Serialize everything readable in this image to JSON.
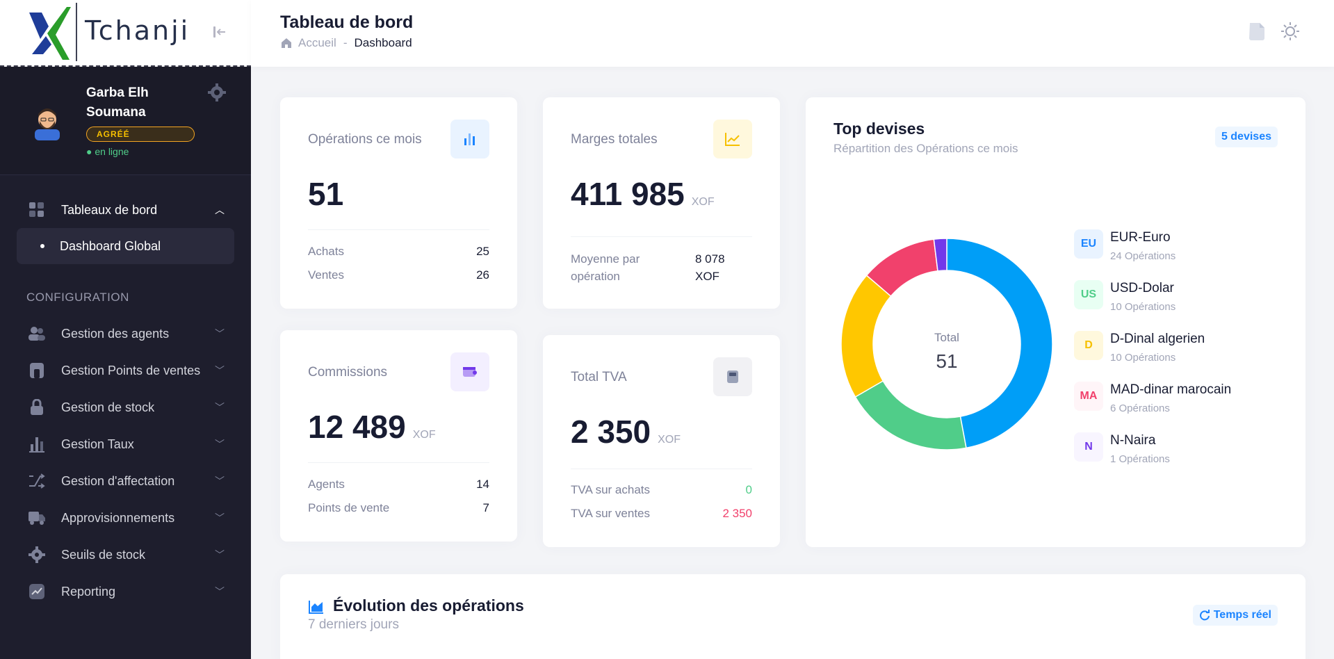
{
  "brand": {
    "name": "Tchanji"
  },
  "user": {
    "name": "Garba Elh Soumana",
    "badge": "AGRÉÉ",
    "status": "en ligne"
  },
  "sidebar": {
    "group_label": "Tableaux de bord",
    "sub_item": "Dashboard Global",
    "section_title": "CONFIGURATION",
    "items": [
      {
        "label": "Gestion des agents",
        "icon": "users-icon"
      },
      {
        "label": "Gestion Points de ventes",
        "icon": "store-icon"
      },
      {
        "label": "Gestion de stock",
        "icon": "lock-icon"
      },
      {
        "label": "Gestion Taux",
        "icon": "chart-bars-icon"
      },
      {
        "label": "Gestion d'affectation",
        "icon": "shuffle-icon"
      },
      {
        "label": "Approvisionnements",
        "icon": "truck-icon"
      },
      {
        "label": "Seuils de stock",
        "icon": "gear-icon"
      },
      {
        "label": "Reporting",
        "icon": "trend-icon"
      }
    ]
  },
  "header": {
    "title": "Tableau de bord",
    "breadcrumb": {
      "home": "Accueil",
      "sep": "-",
      "current": "Dashboard"
    }
  },
  "cards": {
    "operations": {
      "title": "Opérations ce mois",
      "value": "51",
      "rows": [
        {
          "label": "Achats",
          "value": "25"
        },
        {
          "label": "Ventes",
          "value": "26"
        }
      ]
    },
    "marges": {
      "title": "Marges totales",
      "value": "411 985",
      "unit": "XOF",
      "row_label_1": "Moyenne par",
      "row_label_2": "opération",
      "row_value_1": "8 078",
      "row_value_2": "XOF"
    },
    "commissions": {
      "title": "Commissions",
      "value": "12 489",
      "unit": "XOF",
      "rows": [
        {
          "label": "Agents",
          "value": "14"
        },
        {
          "label": "Points de vente",
          "value": "7"
        }
      ]
    },
    "tva": {
      "title": "Total TVA",
      "value": "2 350",
      "unit": "XOF",
      "rows": [
        {
          "label": "TVA sur achats",
          "value": "0"
        },
        {
          "label": "TVA sur ventes",
          "value": "2 350"
        }
      ]
    }
  },
  "top_devises": {
    "title": "Top devises",
    "subtitle": "Répartition des Opérations ce mois",
    "pill": "5 devises",
    "center_label": "Total",
    "center_value": "51",
    "legend": [
      {
        "badge": "EU",
        "name": "EUR-Euro",
        "sub": "24 Opérations"
      },
      {
        "badge": "US",
        "name": "USD-Dolar",
        "sub": "10 Opérations"
      },
      {
        "badge": "D",
        "name": "D-Dinal algerien",
        "sub": "10 Opérations"
      },
      {
        "badge": "MA",
        "name": "MAD-dinar marocain",
        "sub": "6 Opérations"
      },
      {
        "badge": "N",
        "name": "N-Naira",
        "sub": "1 Opérations"
      }
    ]
  },
  "chart_data": {
    "type": "pie",
    "categories": [
      "EUR-Euro",
      "USD-Dolar",
      "D-Dinal algerien",
      "MAD-dinar marocain",
      "N-Naira"
    ],
    "values": [
      24,
      10,
      10,
      6,
      1
    ],
    "colors": [
      "#009ef7",
      "#50cd89",
      "#ffc700",
      "#f1416c",
      "#7239ea"
    ],
    "title": "Top devises"
  },
  "evolution": {
    "title": "Évolution des opérations",
    "subtitle": "7 derniers jours",
    "pill": "Temps réel"
  }
}
